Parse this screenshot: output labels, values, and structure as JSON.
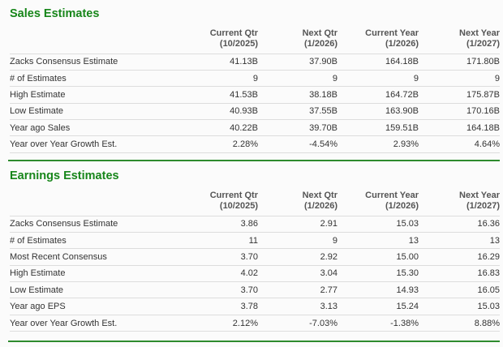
{
  "colors": {
    "title": "#17861a",
    "divider": "#2e8b2e"
  },
  "columns": [
    {
      "label": "Current Qtr",
      "period": "(10/2025)"
    },
    {
      "label": "Next Qtr",
      "period": "(1/2026)"
    },
    {
      "label": "Current Year",
      "period": "(1/2026)"
    },
    {
      "label": "Next Year",
      "period": "(1/2027)"
    }
  ],
  "sales": {
    "title": "Sales Estimates",
    "rows": [
      {
        "label": "Zacks Consensus Estimate",
        "values": [
          "41.13B",
          "37.90B",
          "164.18B",
          "171.80B"
        ]
      },
      {
        "label": "# of Estimates",
        "values": [
          "9",
          "9",
          "9",
          "9"
        ]
      },
      {
        "label": "High Estimate",
        "values": [
          "41.53B",
          "38.18B",
          "164.72B",
          "175.87B"
        ]
      },
      {
        "label": "Low Estimate",
        "values": [
          "40.93B",
          "37.55B",
          "163.90B",
          "170.16B"
        ]
      },
      {
        "label": "Year ago Sales",
        "values": [
          "40.22B",
          "39.70B",
          "159.51B",
          "164.18B"
        ]
      },
      {
        "label": "Year over Year Growth Est.",
        "values": [
          "2.28%",
          "-4.54%",
          "2.93%",
          "4.64%"
        ]
      }
    ]
  },
  "earnings": {
    "title": "Earnings Estimates",
    "rows": [
      {
        "label": "Zacks Consensus Estimate",
        "values": [
          "3.86",
          "2.91",
          "15.03",
          "16.36"
        ]
      },
      {
        "label": "# of Estimates",
        "values": [
          "11",
          "9",
          "13",
          "13"
        ]
      },
      {
        "label": "Most Recent Consensus",
        "values": [
          "3.70",
          "2.92",
          "15.00",
          "16.29"
        ]
      },
      {
        "label": "High Estimate",
        "values": [
          "4.02",
          "3.04",
          "15.30",
          "16.83"
        ]
      },
      {
        "label": "Low Estimate",
        "values": [
          "3.70",
          "2.77",
          "14.93",
          "16.05"
        ]
      },
      {
        "label": "Year ago EPS",
        "values": [
          "3.78",
          "3.13",
          "15.24",
          "15.03"
        ]
      },
      {
        "label": "Year over Year Growth Est.",
        "values": [
          "2.12%",
          "-7.03%",
          "-1.38%",
          "8.88%"
        ]
      }
    ]
  }
}
